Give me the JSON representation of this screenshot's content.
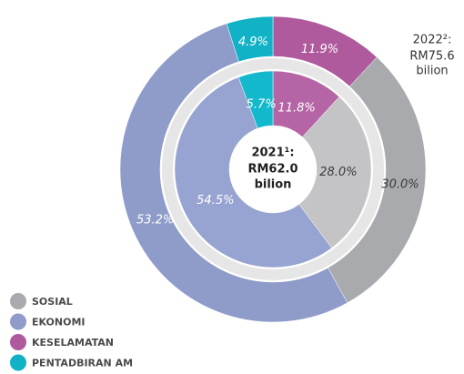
{
  "chart_data": {
    "type": "donut",
    "categories": [
      "KESELAMATAN",
      "SOSIAL",
      "EKONOMI",
      "PENTADBIRAN AM"
    ],
    "series": [
      {
        "label": [
          "2021¹:",
          "RM62.0",
          "bilion"
        ],
        "colors": [
          "#b565a6",
          "#c4c4c6",
          "#97a3d1",
          "#14b8cc"
        ],
        "values": [
          11.8,
          28.0,
          54.5,
          5.7
        ],
        "value_labels": [
          "11.8%",
          "28.0%",
          "54.5%",
          "5.7%"
        ]
      },
      {
        "label": [
          "2022²:",
          "RM75.6",
          "bilion"
        ],
        "colors": [
          "#ae5a9c",
          "#a8aaad",
          "#8f9cc9",
          "#12b2c6"
        ],
        "values": [
          11.9,
          30.0,
          53.2,
          4.9
        ],
        "value_labels": [
          "11.9%",
          "30.0%",
          "53.2%",
          "4.9%"
        ]
      }
    ]
  }
}
